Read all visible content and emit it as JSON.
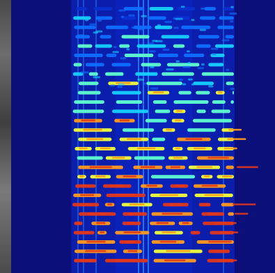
{
  "image": {
    "description_type": "spectrogram-heatmap",
    "colormap": [
      "#0a0f7a",
      "#0b2fd0",
      "#0f6fff",
      "#16d2ff",
      "#5fffd0",
      "#f2ff3a",
      "#ff9b1d",
      "#e2371b"
    ],
    "background_color": "#0a0f7a",
    "left_strip_color": "#5a5a5a"
  }
}
